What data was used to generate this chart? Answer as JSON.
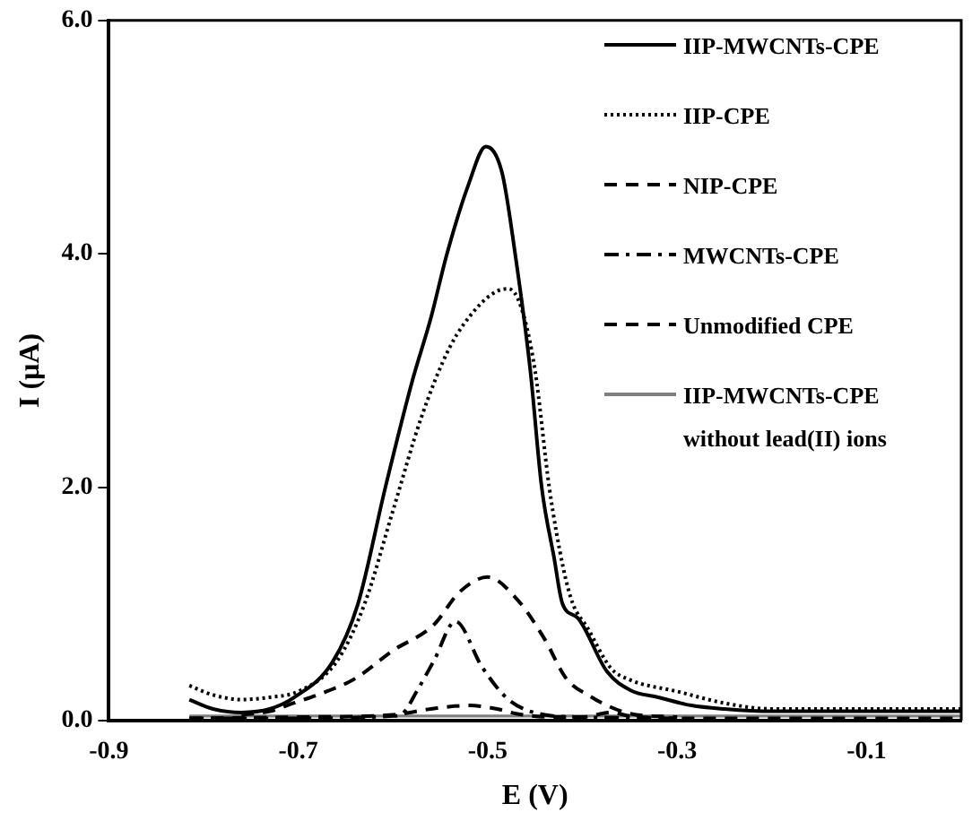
{
  "chart_data": {
    "type": "line",
    "xlabel": "E (V)",
    "ylabel": "I (µA)",
    "xlim": [
      -0.9,
      0
    ],
    "xticks": [
      -0.9,
      -0.7,
      -0.5,
      -0.3,
      -0.1
    ],
    "ylim": [
      0,
      6
    ],
    "yticks": [
      {
        "value": 0,
        "label": "0.0"
      },
      {
        "value": 2,
        "label": "2.0"
      },
      {
        "value": 4,
        "label": "4.0"
      },
      {
        "value": 6,
        "label": "6.0"
      }
    ],
    "grid": false,
    "legend": "top right",
    "marker": "none",
    "series": [
      {
        "name": "IIP-MWCNTs-CPE",
        "color": "#000000",
        "line_style": "solid",
        "x": [
          -0.815,
          -0.79,
          -0.76,
          -0.73,
          -0.704,
          -0.664,
          -0.637,
          -0.608,
          -0.58,
          -0.56,
          -0.543,
          -0.52,
          -0.502,
          -0.485,
          -0.471,
          -0.455,
          -0.443,
          -0.43,
          -0.421,
          -0.405,
          -0.374,
          -0.349,
          -0.32,
          -0.285,
          -0.25,
          -0.2,
          -0.1,
          0
        ],
        "values": [
          0.18,
          0.1,
          0.07,
          0.1,
          0.2,
          0.5,
          1.0,
          2.0,
          2.9,
          3.45,
          4.0,
          4.6,
          4.92,
          4.7,
          4.0,
          3.0,
          2.0,
          1.4,
          1.0,
          0.88,
          0.42,
          0.26,
          0.2,
          0.13,
          0.1,
          0.08,
          0.08,
          0.08
        ]
      },
      {
        "name": "IIP-CPE",
        "color": "#000000",
        "line_style": "dotted",
        "x": [
          -0.815,
          -0.79,
          -0.76,
          -0.73,
          -0.7,
          -0.66,
          -0.63,
          -0.6,
          -0.57,
          -0.54,
          -0.51,
          -0.49,
          -0.478,
          -0.465,
          -0.45,
          -0.435,
          -0.42,
          -0.41,
          -0.395,
          -0.37,
          -0.35,
          -0.3,
          -0.25,
          -0.2,
          -0.1,
          0
        ],
        "values": [
          0.3,
          0.22,
          0.18,
          0.2,
          0.25,
          0.5,
          1.0,
          1.8,
          2.6,
          3.2,
          3.55,
          3.68,
          3.7,
          3.55,
          3.0,
          2.0,
          1.3,
          1.0,
          0.8,
          0.45,
          0.35,
          0.25,
          0.15,
          0.1,
          0.1,
          0.1
        ]
      },
      {
        "name": "NIP-CPE",
        "color": "#000000",
        "line_style": "dashed",
        "x": [
          -0.76,
          -0.73,
          -0.705,
          -0.67,
          -0.64,
          -0.6,
          -0.557,
          -0.53,
          -0.5,
          -0.468,
          -0.44,
          -0.417,
          -0.39,
          -0.374,
          -0.35,
          -0.3
        ],
        "values": [
          0.05,
          0.08,
          0.15,
          0.25,
          0.36,
          0.6,
          0.82,
          1.1,
          1.23,
          1.03,
          0.7,
          0.36,
          0.2,
          0.13,
          0.06,
          0.03
        ]
      },
      {
        "name": "MWCNTs-CPE",
        "color": "#000000",
        "line_style": "dashdot",
        "x": [
          -0.815,
          -0.7,
          -0.6,
          -0.59,
          -0.575,
          -0.557,
          -0.534,
          -0.506,
          -0.478,
          -0.44,
          -0.4,
          -0.3
        ],
        "values": [
          0.02,
          0.02,
          0.04,
          0.06,
          0.25,
          0.51,
          0.85,
          0.46,
          0.18,
          0.05,
          0.03,
          0.02
        ]
      },
      {
        "name": "Unmodified CPE",
        "color": "#000000",
        "line_style": "dashed",
        "x": [
          -0.815,
          -0.7,
          -0.6,
          -0.56,
          -0.52,
          -0.49,
          -0.47,
          -0.43,
          -0.4,
          -0.37,
          -0.35,
          -0.3,
          -0.1,
          0
        ],
        "values": [
          0.02,
          0.03,
          0.05,
          0.1,
          0.13,
          0.1,
          0.06,
          0.03,
          0.03,
          0.07,
          0.04,
          0.02,
          0.02,
          0.02
        ]
      },
      {
        "name": "IIP-MWCNTs-CPE without lead(II) ions",
        "color": "#808080",
        "line_style": "solid",
        "x": [
          -0.815,
          -0.5,
          -0.2,
          0
        ],
        "values": [
          0.04,
          0.04,
          0.04,
          0.04
        ]
      }
    ]
  }
}
